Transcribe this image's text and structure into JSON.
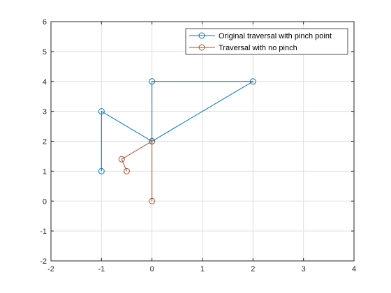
{
  "chart_data": {
    "type": "line",
    "title": "",
    "xlabel": "",
    "ylabel": "",
    "xlim": [
      -2,
      4
    ],
    "ylim": [
      -2,
      6
    ],
    "x_ticks": [
      "-2",
      "-1",
      "0",
      "1",
      "2",
      "3",
      "4"
    ],
    "y_ticks": [
      "-2",
      "-1",
      "0",
      "1",
      "2",
      "3",
      "4",
      "5",
      "6"
    ],
    "grid": true,
    "legend_position": "top-right",
    "series": [
      {
        "name": "Original traversal with pinch point",
        "color": "#0072BD",
        "marker": "open-circle",
        "x": [
          -1,
          -1,
          0,
          2,
          0,
          0
        ],
        "y": [
          1,
          3,
          2,
          4,
          4,
          2
        ]
      },
      {
        "name": "Traversal with no pinch",
        "color": "#A2522E",
        "marker": "open-circle",
        "x": [
          -0.5,
          -0.6,
          0,
          0
        ],
        "y": [
          1,
          1.4,
          2,
          0
        ]
      }
    ]
  }
}
